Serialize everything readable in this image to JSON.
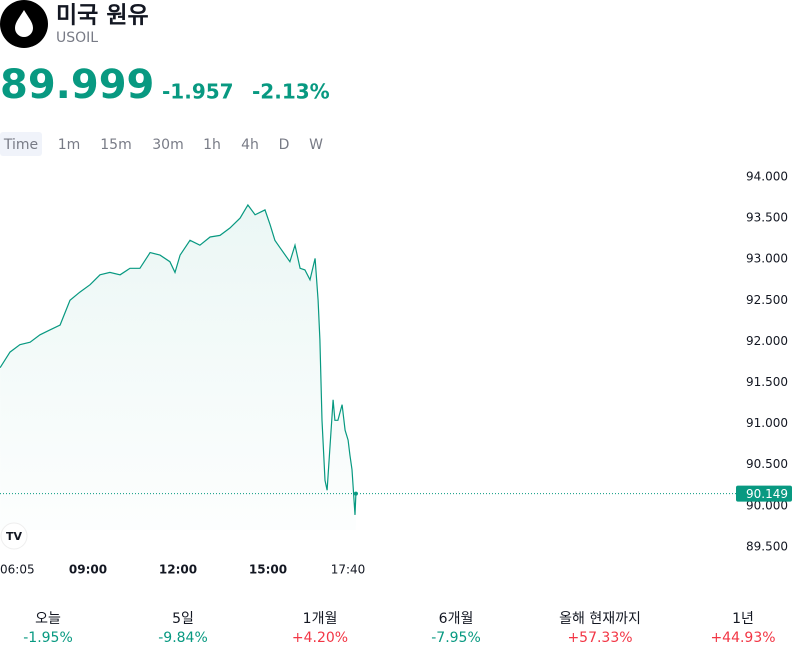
{
  "header": {
    "title": "미국 원유",
    "symbol": "USOIL",
    "price": "89.999",
    "change": "-1.957",
    "change_percent": "-2.13%"
  },
  "timeframes": [
    "Time",
    "1m",
    "15m",
    "30m",
    "1h",
    "4h",
    "D",
    "W"
  ],
  "chart_data": {
    "type": "area",
    "color": "#089981",
    "x": [
      6.07,
      6.4,
      6.73,
      7.07,
      7.4,
      7.73,
      8.07,
      8.4,
      8.73,
      9.07,
      9.4,
      9.73,
      10.07,
      10.4,
      10.73,
      11.07,
      11.4,
      11.73,
      11.9,
      12.07,
      12.4,
      12.73,
      13.07,
      13.4,
      13.73,
      14.07,
      14.33,
      14.57,
      14.9,
      15.07,
      15.23,
      15.4,
      15.73,
      15.9,
      16.07,
      16.23,
      16.4,
      16.57,
      16.67,
      16.73,
      16.8,
      16.9,
      16.97,
      17.07,
      17.17,
      17.23,
      17.33,
      17.47,
      17.57,
      17.67,
      17.73,
      17.8,
      17.9,
      17.93
    ],
    "values": [
      91.68,
      91.87,
      91.96,
      91.99,
      92.08,
      92.14,
      92.2,
      92.5,
      92.6,
      92.69,
      92.81,
      92.84,
      92.81,
      92.89,
      92.89,
      93.08,
      93.05,
      92.97,
      92.84,
      93.05,
      93.23,
      93.17,
      93.27,
      93.29,
      93.38,
      93.5,
      93.66,
      93.54,
      93.6,
      93.42,
      93.23,
      93.14,
      92.97,
      93.17,
      92.89,
      92.87,
      92.75,
      93.01,
      92.5,
      92.02,
      91.04,
      90.31,
      90.19,
      90.74,
      91.29,
      91.04,
      91.04,
      91.23,
      90.92,
      90.8,
      90.62,
      90.44,
      89.89,
      90.149
    ],
    "xlim": [
      6.067,
      30.733
    ],
    "xticks": [
      {
        "value": 6.0833,
        "label": "06:05"
      },
      {
        "value": 9,
        "label": "09:00"
      },
      {
        "value": 12,
        "label": "12:00"
      },
      {
        "value": 15,
        "label": "15:00"
      },
      {
        "value": 17.6667,
        "label": "17:40"
      }
    ],
    "ylim": [
      89.341,
      94.207
    ],
    "yticks": [
      {
        "value": 89.5,
        "label": "89.500"
      },
      {
        "value": 90,
        "label": "90.000"
      },
      {
        "value": 90.5,
        "label": "90.500"
      },
      {
        "value": 91,
        "label": "91.000"
      },
      {
        "value": 91.5,
        "label": "91.500"
      },
      {
        "value": 92,
        "label": "92.000"
      },
      {
        "value": 92.5,
        "label": "92.500"
      },
      {
        "value": 93,
        "label": "93.000"
      },
      {
        "value": 93.5,
        "label": "93.500"
      },
      {
        "value": 94,
        "label": "94.000"
      }
    ]
  },
  "performance": [
    {
      "label": "오늘",
      "value": "-1.95%",
      "color": "#089981"
    },
    {
      "label": "5일",
      "value": "-9.84%",
      "color": "#089981"
    },
    {
      "label": "1개월",
      "value": "+4.20%",
      "color": "#f23645"
    },
    {
      "label": "6개월",
      "value": "-7.95%",
      "color": "#089981"
    },
    {
      "label": "올해 현재까지",
      "value": "+57.33%",
      "color": "#f23645"
    },
    {
      "label": "1년",
      "value": "+44.93%",
      "color": "#f23645"
    }
  ]
}
